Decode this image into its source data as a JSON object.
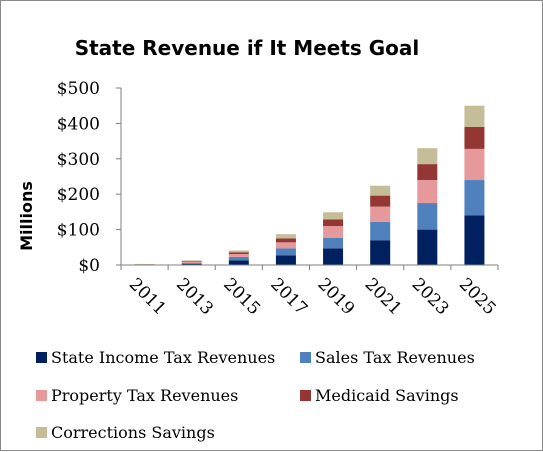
{
  "chart_data": {
    "type": "bar",
    "stacked": true,
    "title": "State Revenue if It Meets Goal",
    "ylabel": "Millions",
    "xlabel": "",
    "categories": [
      "2011",
      "2013",
      "2015",
      "2017",
      "2019",
      "2021",
      "2023",
      "2025"
    ],
    "ylim": [
      0,
      500
    ],
    "yticks": [
      "$0",
      "$100",
      "$200",
      "$300",
      "$400",
      "$500"
    ],
    "grid": false,
    "legend": "bottom",
    "series": [
      {
        "name": "State Income Tax Revenues",
        "color": "#002060",
        "values": [
          0,
          3,
          13,
          27,
          47,
          70,
          100,
          140
        ]
      },
      {
        "name": "Sales Tax Revenues",
        "color": "#4f81bd",
        "values": [
          0,
          3,
          10,
          20,
          30,
          52,
          75,
          100
        ]
      },
      {
        "name": "Property Tax Revenues",
        "color": "#e6999b",
        "values": [
          1,
          3,
          8,
          17,
          33,
          43,
          65,
          88
        ]
      },
      {
        "name": "Medicaid Savings",
        "color": "#943634",
        "values": [
          1,
          2,
          5,
          11,
          19,
          31,
          45,
          62
        ]
      },
      {
        "name": "Corrections Savings",
        "color": "#c4bd97",
        "values": [
          1,
          2,
          5,
          12,
          20,
          28,
          45,
          60
        ]
      }
    ]
  }
}
